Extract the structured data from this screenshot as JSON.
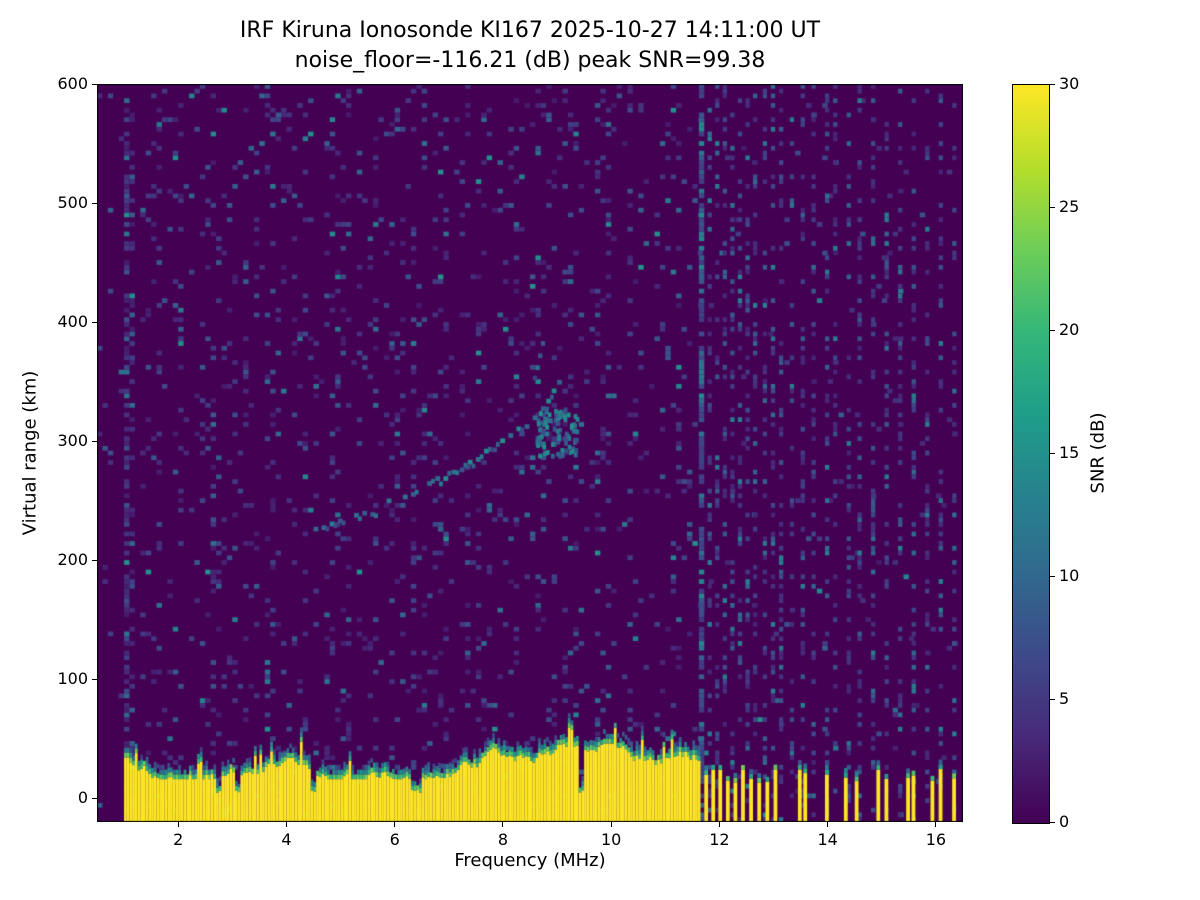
{
  "chart_data": {
    "type": "heatmap",
    "title": "IRF Kiruna Ionosonde KI167 2025-10-27 14:11:00  UT",
    "subtitle": "noise_floor=-116.21 (dB) peak SNR=99.38",
    "station": "IRF Kiruna Ionosonde KI167",
    "timestamp_ut": "2025-10-27 14:11:00",
    "noise_floor_db": -116.21,
    "peak_snr_db": 99.38,
    "xlabel": "Frequency (MHz)",
    "ylabel": "Virtual range (km)",
    "xlim": [
      0.5,
      16.5
    ],
    "ylim": [
      -20,
      600
    ],
    "xticks": [
      2,
      4,
      6,
      8,
      10,
      12,
      14,
      16
    ],
    "yticks": [
      0,
      100,
      200,
      300,
      400,
      500,
      600
    ],
    "grid": false,
    "colorbar": {
      "label": "SNR (dB)",
      "min": 0,
      "max": 30,
      "ticks": [
        0,
        5,
        10,
        15,
        20,
        25,
        30
      ],
      "colormap": "viridis"
    },
    "viridis_stops": [
      "#440154",
      "#482878",
      "#3e4989",
      "#31688e",
      "#26828e",
      "#1f9e89",
      "#35b779",
      "#6ece58",
      "#b5de2b",
      "#fde725"
    ],
    "noise": {
      "seed": 20251027,
      "freq_bin_mhz": 0.1,
      "range_bin_km": 4,
      "base_density": 0.085,
      "hf_density": 0.012,
      "left_edge_quiet_below_mhz": 0.95,
      "noisy_column_range_mhz": [
        0.98,
        1.12
      ],
      "noisy_column_density": 0.5
    },
    "features": {
      "ground_clutter_band": {
        "freq_start_mhz": 1.0,
        "freq_end_mhz": 11.62,
        "top_km_min": 16,
        "top_km_max": 46,
        "snr_db": 30,
        "notch_freqs_mhz": [
          2.72,
          3.08,
          4.45,
          6.3,
          6.42,
          9.4
        ]
      },
      "echo_trace": [
        [
          4.5,
          224
        ],
        [
          4.65,
          226
        ],
        [
          4.8,
          228
        ],
        [
          4.95,
          230
        ],
        [
          5.1,
          232
        ],
        [
          5.25,
          234
        ],
        [
          5.4,
          237
        ],
        [
          5.55,
          239
        ],
        [
          5.7,
          242
        ],
        [
          5.85,
          245
        ],
        [
          6.0,
          248
        ],
        [
          6.15,
          251
        ],
        [
          6.3,
          254
        ],
        [
          6.45,
          258
        ],
        [
          6.6,
          261
        ],
        [
          6.75,
          265
        ],
        [
          6.9,
          268
        ],
        [
          7.05,
          272
        ],
        [
          7.2,
          276
        ],
        [
          7.35,
          280
        ],
        [
          7.5,
          284
        ],
        [
          7.65,
          288
        ],
        [
          7.8,
          292
        ],
        [
          7.95,
          297
        ],
        [
          8.1,
          302
        ],
        [
          8.25,
          307
        ],
        [
          8.4,
          313
        ],
        [
          8.55,
          319
        ],
        [
          8.7,
          326
        ],
        [
          8.8,
          333
        ],
        [
          8.9,
          341
        ],
        [
          9.0,
          350
        ]
      ],
      "echo_trace_upper": [
        [
          8.5,
          340
        ],
        [
          8.55,
          350
        ],
        [
          8.6,
          360
        ],
        [
          8.65,
          372
        ],
        [
          8.7,
          384
        ],
        [
          8.75,
          395
        ],
        [
          8.8,
          404
        ]
      ],
      "echo_cluster": {
        "freq_range": [
          8.6,
          9.35
        ],
        "range_km": [
          285,
          325
        ]
      },
      "interference_strong_freq_mhz": 11.62,
      "interference_stripe_freqs_mhz": [
        11.78,
        11.92,
        12.06,
        12.2,
        12.34,
        12.48,
        12.62,
        12.8,
        12.95,
        13.1,
        13.3,
        13.5,
        13.7,
        13.95,
        14.1,
        14.35,
        14.55,
        14.8,
        15.05,
        15.3,
        15.55,
        15.8,
        16.05,
        16.3
      ],
      "broken_clutter_freqs_mhz": [
        11.72,
        11.85,
        11.98,
        12.12,
        12.26,
        12.4,
        12.55,
        12.7,
        12.85,
        13.0,
        13.45,
        13.55,
        13.95,
        14.3,
        14.5,
        14.9,
        15.05,
        15.45,
        15.55,
        15.9,
        16.05,
        16.3
      ]
    }
  }
}
